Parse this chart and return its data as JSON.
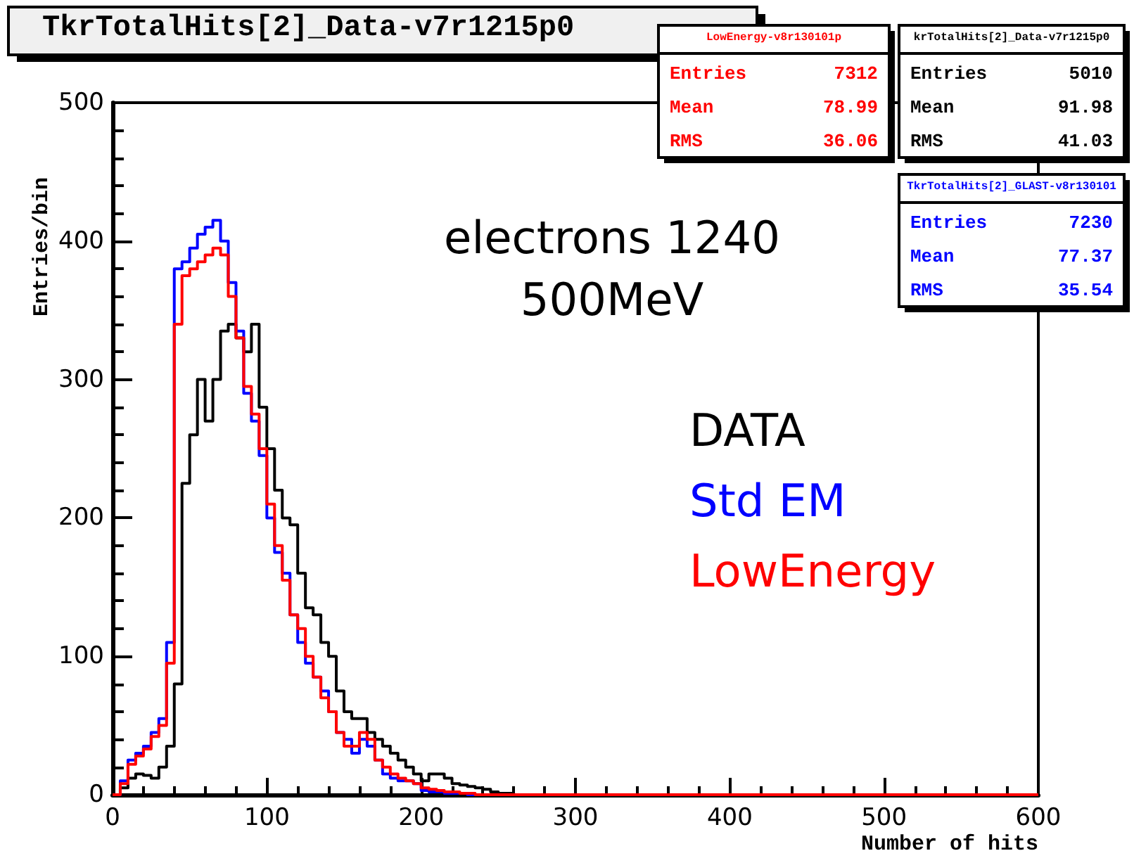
{
  "chart_data": {
    "type": "histogram",
    "title": "TkrTotalHits[2]_Data-v7r1215p0",
    "xlabel": "Number of hits",
    "ylabel": "Entries/bin",
    "bins": [
      0,
      5,
      10,
      15,
      20,
      25,
      30,
      35,
      40,
      45,
      50,
      55,
      60,
      65,
      70,
      75,
      80,
      85,
      90,
      95,
      100,
      105,
      110,
      115,
      120,
      125,
      130,
      135,
      140,
      145,
      150,
      155,
      160,
      165,
      170,
      175,
      180,
      185,
      190,
      195,
      200,
      205,
      210,
      215,
      220,
      225,
      230,
      235,
      240,
      245,
      250,
      255,
      260,
      600
    ],
    "series": [
      {
        "name": "DATA",
        "color": "#000000",
        "values": [
          0,
          5,
          12,
          15,
          14,
          12,
          20,
          35,
          80,
          225,
          260,
          300,
          270,
          300,
          335,
          340,
          330,
          320,
          340,
          280,
          250,
          220,
          200,
          195,
          160,
          135,
          130,
          110,
          100,
          75,
          60,
          55,
          55,
          45,
          40,
          35,
          30,
          25,
          20,
          15,
          10,
          15,
          15,
          12,
          8,
          7,
          6,
          5,
          4,
          2,
          1,
          1,
          0
        ]
      },
      {
        "name": "Std EM",
        "color": "#0000ff",
        "values": [
          0,
          10,
          25,
          30,
          35,
          45,
          55,
          110,
          380,
          385,
          395,
          405,
          410,
          415,
          400,
          370,
          335,
          290,
          270,
          245,
          200,
          175,
          160,
          130,
          110,
          95,
          85,
          75,
          60,
          45,
          40,
          30,
          40,
          35,
          25,
          15,
          12,
          10,
          10,
          8,
          3,
          2,
          2,
          1,
          1,
          1,
          0,
          0,
          0,
          0,
          0,
          0,
          0
        ]
      },
      {
        "name": "LowEnergy",
        "color": "#ff0000",
        "values": [
          0,
          8,
          22,
          28,
          33,
          42,
          50,
          95,
          340,
          375,
          380,
          385,
          390,
          395,
          390,
          360,
          330,
          295,
          275,
          250,
          210,
          180,
          155,
          130,
          120,
          100,
          85,
          70,
          60,
          45,
          35,
          35,
          45,
          40,
          25,
          20,
          15,
          12,
          10,
          8,
          5,
          4,
          3,
          2,
          2,
          1,
          1,
          0,
          0,
          0,
          0,
          0,
          0
        ]
      }
    ],
    "xlim": [
      0,
      600
    ],
    "xticks": [
      0,
      100,
      200,
      300,
      400,
      500,
      600
    ],
    "ylim": [
      0,
      500
    ],
    "yticks": [
      0,
      100,
      200,
      300,
      400,
      500
    ],
    "grid": false,
    "legend": "right",
    "marker": "none",
    "line_style": "solid",
    "annotations": [
      "electrons 1240",
      "500MeV",
      "LowEnergy-v8r130101p",
      "Entries 7312",
      "Mean 78.99",
      "RMS 36.06",
      "krTotalHits[2]_Data-v7r1215p0",
      "Entries 5010",
      "Mean 91.98",
      "RMS 41.03",
      "TkrTotalHits[2]_GLAST-v8r130101",
      "Entries 7230",
      "Mean 77.37",
      "RMS 35.54"
    ]
  }
}
